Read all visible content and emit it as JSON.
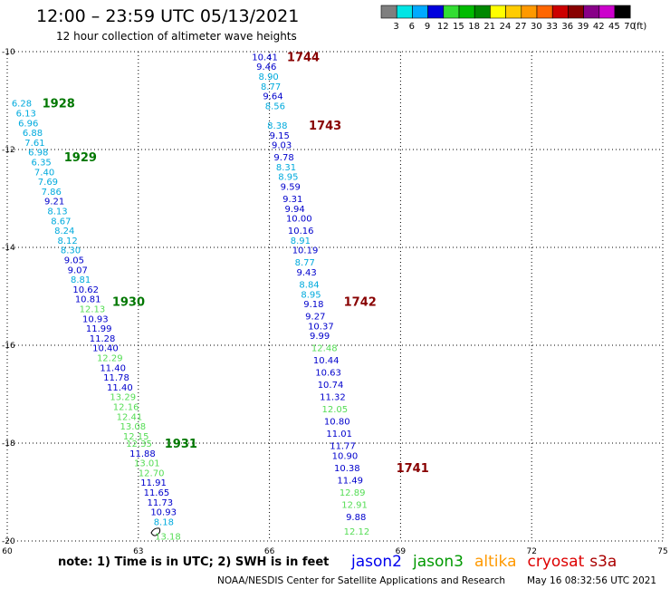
{
  "header": {
    "title": "12:00 – 23:59 UTC 05/13/2021",
    "subtitle": "12 hour collection of altimeter wave heights"
  },
  "scale": {
    "labels": [
      "3",
      "6",
      "9",
      "12",
      "15",
      "18",
      "21",
      "24",
      "27",
      "30",
      "33",
      "36",
      "39",
      "42",
      "45",
      "70",
      "(ft)"
    ],
    "colors": [
      "#7f7f7f",
      "#00e5e5",
      "#00aaff",
      "#0000dd",
      "#33dd33",
      "#00bb00",
      "#008800",
      "#ffff00",
      "#ffcc00",
      "#ff9900",
      "#ff6600",
      "#cc0000",
      "#880000",
      "#880088",
      "#cc00cc",
      "#000000"
    ]
  },
  "axes": {
    "lon_ticks": [
      60,
      63,
      66,
      69,
      72,
      75
    ],
    "lat_ticks": [
      -10,
      -12,
      -14,
      -16,
      -18,
      -20
    ],
    "lon_labels": [
      "60",
      "63",
      "66",
      "69",
      "72",
      "75"
    ],
    "lat_labels": [
      "-10",
      "-12",
      "-14",
      "-16",
      "-18",
      "-20"
    ],
    "xlim": [
      60,
      75
    ],
    "ylim": [
      -20,
      -10
    ],
    "grid": true
  },
  "footer": {
    "note": "note:  1) Time is in UTC; 2) SWH is in feet",
    "credit": "NOAA/NESDIS Center for Satellite Applications and Research",
    "timestamp": "May 16 08:32:56 UTC 2021"
  },
  "legend": [
    {
      "label": "jason2",
      "color": "#0000ee"
    },
    {
      "label": "jason3",
      "color": "#009900"
    },
    {
      "label": "altika",
      "color": "#ff9900"
    },
    {
      "label": "cryosat",
      "color": "#dd0000"
    },
    {
      "label": "s3a",
      "color": "#aa0000"
    }
  ],
  "colors": {
    "dark_blue": "#0000cc",
    "cyan": "#00aadd",
    "light_green": "#55dd55",
    "time_green": "#007700",
    "time_red": "#880000"
  },
  "chart_data": {
    "type": "scatter",
    "xlabel": "",
    "ylabel": "",
    "tracks": [
      {
        "name": "track-west",
        "time_labels": [
          {
            "text": "1928",
            "lon": 60.8,
            "lat": -11.05,
            "color": "time_green"
          },
          {
            "text": "1929",
            "lon": 61.3,
            "lat": -12.15,
            "color": "time_green"
          },
          {
            "text": "1930",
            "lon": 62.4,
            "lat": -15.1,
            "color": "time_green"
          },
          {
            "text": "1931",
            "lon": 63.6,
            "lat": -18.0,
            "color": "time_green"
          }
        ],
        "points": [
          {
            "v": "6.28",
            "lon": 60.1,
            "lat": -11.05,
            "c": "cyan"
          },
          {
            "v": "6.13",
            "lon": 60.2,
            "lat": -11.25,
            "c": "cyan"
          },
          {
            "v": "6.96",
            "lon": 60.25,
            "lat": -11.45,
            "c": "cyan"
          },
          {
            "v": "6.88",
            "lon": 60.35,
            "lat": -11.65,
            "c": "cyan"
          },
          {
            "v": "7.61",
            "lon": 60.4,
            "lat": -11.85,
            "c": "cyan"
          },
          {
            "v": "6.98",
            "lon": 60.48,
            "lat": -12.05,
            "c": "cyan"
          },
          {
            "v": "6.35",
            "lon": 60.55,
            "lat": -12.25,
            "c": "cyan"
          },
          {
            "v": "7.40",
            "lon": 60.62,
            "lat": -12.45,
            "c": "cyan"
          },
          {
            "v": "7.69",
            "lon": 60.7,
            "lat": -12.65,
            "c": "cyan"
          },
          {
            "v": "7.86",
            "lon": 60.78,
            "lat": -12.85,
            "c": "cyan"
          },
          {
            "v": "9.21",
            "lon": 60.85,
            "lat": -13.05,
            "c": "dark_blue"
          },
          {
            "v": "8.13",
            "lon": 60.92,
            "lat": -13.25,
            "c": "cyan"
          },
          {
            "v": "8.67",
            "lon": 61.0,
            "lat": -13.45,
            "c": "cyan"
          },
          {
            "v": "8.24",
            "lon": 61.08,
            "lat": -13.65,
            "c": "cyan"
          },
          {
            "v": "8.12",
            "lon": 61.15,
            "lat": -13.85,
            "c": "cyan"
          },
          {
            "v": "8.30",
            "lon": 61.22,
            "lat": -14.05,
            "c": "cyan"
          },
          {
            "v": "9.05",
            "lon": 61.3,
            "lat": -14.25,
            "c": "dark_blue"
          },
          {
            "v": "9.07",
            "lon": 61.38,
            "lat": -14.45,
            "c": "dark_blue"
          },
          {
            "v": "8.81",
            "lon": 61.45,
            "lat": -14.65,
            "c": "cyan"
          },
          {
            "v": "10.62",
            "lon": 61.5,
            "lat": -14.85,
            "c": "dark_blue"
          },
          {
            "v": "10.81",
            "lon": 61.55,
            "lat": -15.05,
            "c": "dark_blue"
          },
          {
            "v": "12.13",
            "lon": 61.65,
            "lat": -15.25,
            "c": "light_green"
          },
          {
            "v": "10.93",
            "lon": 61.72,
            "lat": -15.45,
            "c": "dark_blue"
          },
          {
            "v": "11.99",
            "lon": 61.8,
            "lat": -15.65,
            "c": "dark_blue"
          },
          {
            "v": "11.28",
            "lon": 61.88,
            "lat": -15.85,
            "c": "dark_blue"
          },
          {
            "v": "10.40",
            "lon": 61.95,
            "lat": -16.05,
            "c": "dark_blue"
          },
          {
            "v": "12.29",
            "lon": 62.05,
            "lat": -16.25,
            "c": "light_green"
          },
          {
            "v": "11.40",
            "lon": 62.12,
            "lat": -16.45,
            "c": "dark_blue"
          },
          {
            "v": "11.78",
            "lon": 62.2,
            "lat": -16.65,
            "c": "dark_blue"
          },
          {
            "v": "11.40",
            "lon": 62.28,
            "lat": -16.85,
            "c": "dark_blue"
          },
          {
            "v": "13.29",
            "lon": 62.35,
            "lat": -17.05,
            "c": "light_green"
          },
          {
            "v": "12.16",
            "lon": 62.42,
            "lat": -17.25,
            "c": "light_green"
          },
          {
            "v": "12.41",
            "lon": 62.5,
            "lat": -17.45,
            "c": "light_green"
          },
          {
            "v": "13.08",
            "lon": 62.58,
            "lat": -17.65,
            "c": "light_green"
          },
          {
            "v": "12.15",
            "lon": 62.65,
            "lat": -17.85,
            "c": "light_green"
          },
          {
            "v": "12.35",
            "lon": 62.72,
            "lat": -18.0,
            "c": "light_green"
          },
          {
            "v": "11.88",
            "lon": 62.8,
            "lat": -18.2,
            "c": "dark_blue"
          },
          {
            "v": "13.01",
            "lon": 62.9,
            "lat": -18.4,
            "c": "light_green"
          },
          {
            "v": "12.70",
            "lon": 63.0,
            "lat": -18.6,
            "c": "light_green"
          },
          {
            "v": "11.91",
            "lon": 63.05,
            "lat": -18.8,
            "c": "dark_blue"
          },
          {
            "v": "11.65",
            "lon": 63.12,
            "lat": -19.0,
            "c": "dark_blue"
          },
          {
            "v": "11.73",
            "lon": 63.2,
            "lat": -19.2,
            "c": "dark_blue"
          },
          {
            "v": "10.93",
            "lon": 63.28,
            "lat": -19.4,
            "c": "dark_blue"
          },
          {
            "v": "8.18",
            "lon": 63.35,
            "lat": -19.6,
            "c": "cyan"
          },
          {
            "v": "13.18",
            "lon": 63.38,
            "lat": -19.9,
            "c": "light_green"
          }
        ]
      },
      {
        "name": "track-east",
        "time_labels": [
          {
            "text": "1744",
            "lon": 66.4,
            "lat": -10.1,
            "color": "time_red"
          },
          {
            "text": "1743",
            "lon": 66.9,
            "lat": -11.5,
            "color": "time_red"
          },
          {
            "text": "1742",
            "lon": 67.7,
            "lat": -15.1,
            "color": "time_red"
          },
          {
            "text": "1741",
            "lon": 68.9,
            "lat": -18.5,
            "color": "time_red"
          }
        ],
        "points": [
          {
            "v": "10.41",
            "lon": 65.6,
            "lat": -10.1,
            "c": "dark_blue"
          },
          {
            "v": "9.46",
            "lon": 65.7,
            "lat": -10.3,
            "c": "dark_blue"
          },
          {
            "v": "8.90",
            "lon": 65.75,
            "lat": -10.5,
            "c": "cyan"
          },
          {
            "v": "8.77",
            "lon": 65.8,
            "lat": -10.7,
            "c": "cyan"
          },
          {
            "v": "9.64",
            "lon": 65.85,
            "lat": -10.9,
            "c": "dark_blue"
          },
          {
            "v": "8.56",
            "lon": 65.9,
            "lat": -11.1,
            "c": "cyan"
          },
          {
            "v": "8.38",
            "lon": 65.95,
            "lat": -11.5,
            "c": "cyan"
          },
          {
            "v": "9.15",
            "lon": 66.0,
            "lat": -11.7,
            "c": "dark_blue"
          },
          {
            "v": "9.03",
            "lon": 66.05,
            "lat": -11.9,
            "c": "dark_blue"
          },
          {
            "v": "9.78",
            "lon": 66.1,
            "lat": -12.15,
            "c": "dark_blue"
          },
          {
            "v": "8.31",
            "lon": 66.15,
            "lat": -12.35,
            "c": "cyan"
          },
          {
            "v": "8.95",
            "lon": 66.2,
            "lat": -12.55,
            "c": "cyan"
          },
          {
            "v": "9.59",
            "lon": 66.25,
            "lat": -12.75,
            "c": "dark_blue"
          },
          {
            "v": "9.31",
            "lon": 66.3,
            "lat": -13.0,
            "c": "dark_blue"
          },
          {
            "v": "9.94",
            "lon": 66.35,
            "lat": -13.2,
            "c": "dark_blue"
          },
          {
            "v": "10.00",
            "lon": 66.38,
            "lat": -13.4,
            "c": "dark_blue"
          },
          {
            "v": "10.16",
            "lon": 66.42,
            "lat": -13.65,
            "c": "dark_blue"
          },
          {
            "v": "8.91",
            "lon": 66.48,
            "lat": -13.85,
            "c": "cyan"
          },
          {
            "v": "10.19",
            "lon": 66.52,
            "lat": -14.05,
            "c": "dark_blue"
          },
          {
            "v": "8.77",
            "lon": 66.58,
            "lat": -14.3,
            "c": "cyan"
          },
          {
            "v": "9.43",
            "lon": 66.62,
            "lat": -14.5,
            "c": "dark_blue"
          },
          {
            "v": "8.84",
            "lon": 66.68,
            "lat": -14.75,
            "c": "cyan"
          },
          {
            "v": "8.95",
            "lon": 66.72,
            "lat": -14.95,
            "c": "cyan"
          },
          {
            "v": "9.18",
            "lon": 66.78,
            "lat": -15.15,
            "c": "dark_blue"
          },
          {
            "v": "9.27",
            "lon": 66.82,
            "lat": -15.4,
            "c": "dark_blue"
          },
          {
            "v": "10.37",
            "lon": 66.88,
            "lat": -15.6,
            "c": "dark_blue"
          },
          {
            "v": "9.99",
            "lon": 66.92,
            "lat": -15.8,
            "c": "dark_blue"
          },
          {
            "v": "12.48",
            "lon": 66.96,
            "lat": -16.05,
            "c": "light_green"
          },
          {
            "v": "10.44",
            "lon": 67.0,
            "lat": -16.3,
            "c": "dark_blue"
          },
          {
            "v": "10.63",
            "lon": 67.05,
            "lat": -16.55,
            "c": "dark_blue"
          },
          {
            "v": "10.74",
            "lon": 67.1,
            "lat": -16.8,
            "c": "dark_blue"
          },
          {
            "v": "11.32",
            "lon": 67.15,
            "lat": -17.05,
            "c": "dark_blue"
          },
          {
            "v": "12.05",
            "lon": 67.2,
            "lat": -17.3,
            "c": "light_green"
          },
          {
            "v": "10.80",
            "lon": 67.25,
            "lat": -17.55,
            "c": "dark_blue"
          },
          {
            "v": "11.01",
            "lon": 67.3,
            "lat": -17.8,
            "c": "dark_blue"
          },
          {
            "v": "11.77",
            "lon": 67.38,
            "lat": -18.05,
            "c": "dark_blue"
          },
          {
            "v": "10.90",
            "lon": 67.43,
            "lat": -18.25,
            "c": "dark_blue"
          },
          {
            "v": "10.38",
            "lon": 67.48,
            "lat": -18.5,
            "c": "dark_blue"
          },
          {
            "v": "11.49",
            "lon": 67.55,
            "lat": -18.75,
            "c": "dark_blue"
          },
          {
            "v": "12.89",
            "lon": 67.6,
            "lat": -19.0,
            "c": "light_green"
          },
          {
            "v": "12.91",
            "lon": 67.65,
            "lat": -19.25,
            "c": "light_green"
          },
          {
            "v": "9.88",
            "lon": 67.75,
            "lat": -19.5,
            "c": "dark_blue"
          },
          {
            "v": "12.12",
            "lon": 67.7,
            "lat": -19.8,
            "c": "light_green"
          }
        ]
      }
    ]
  }
}
